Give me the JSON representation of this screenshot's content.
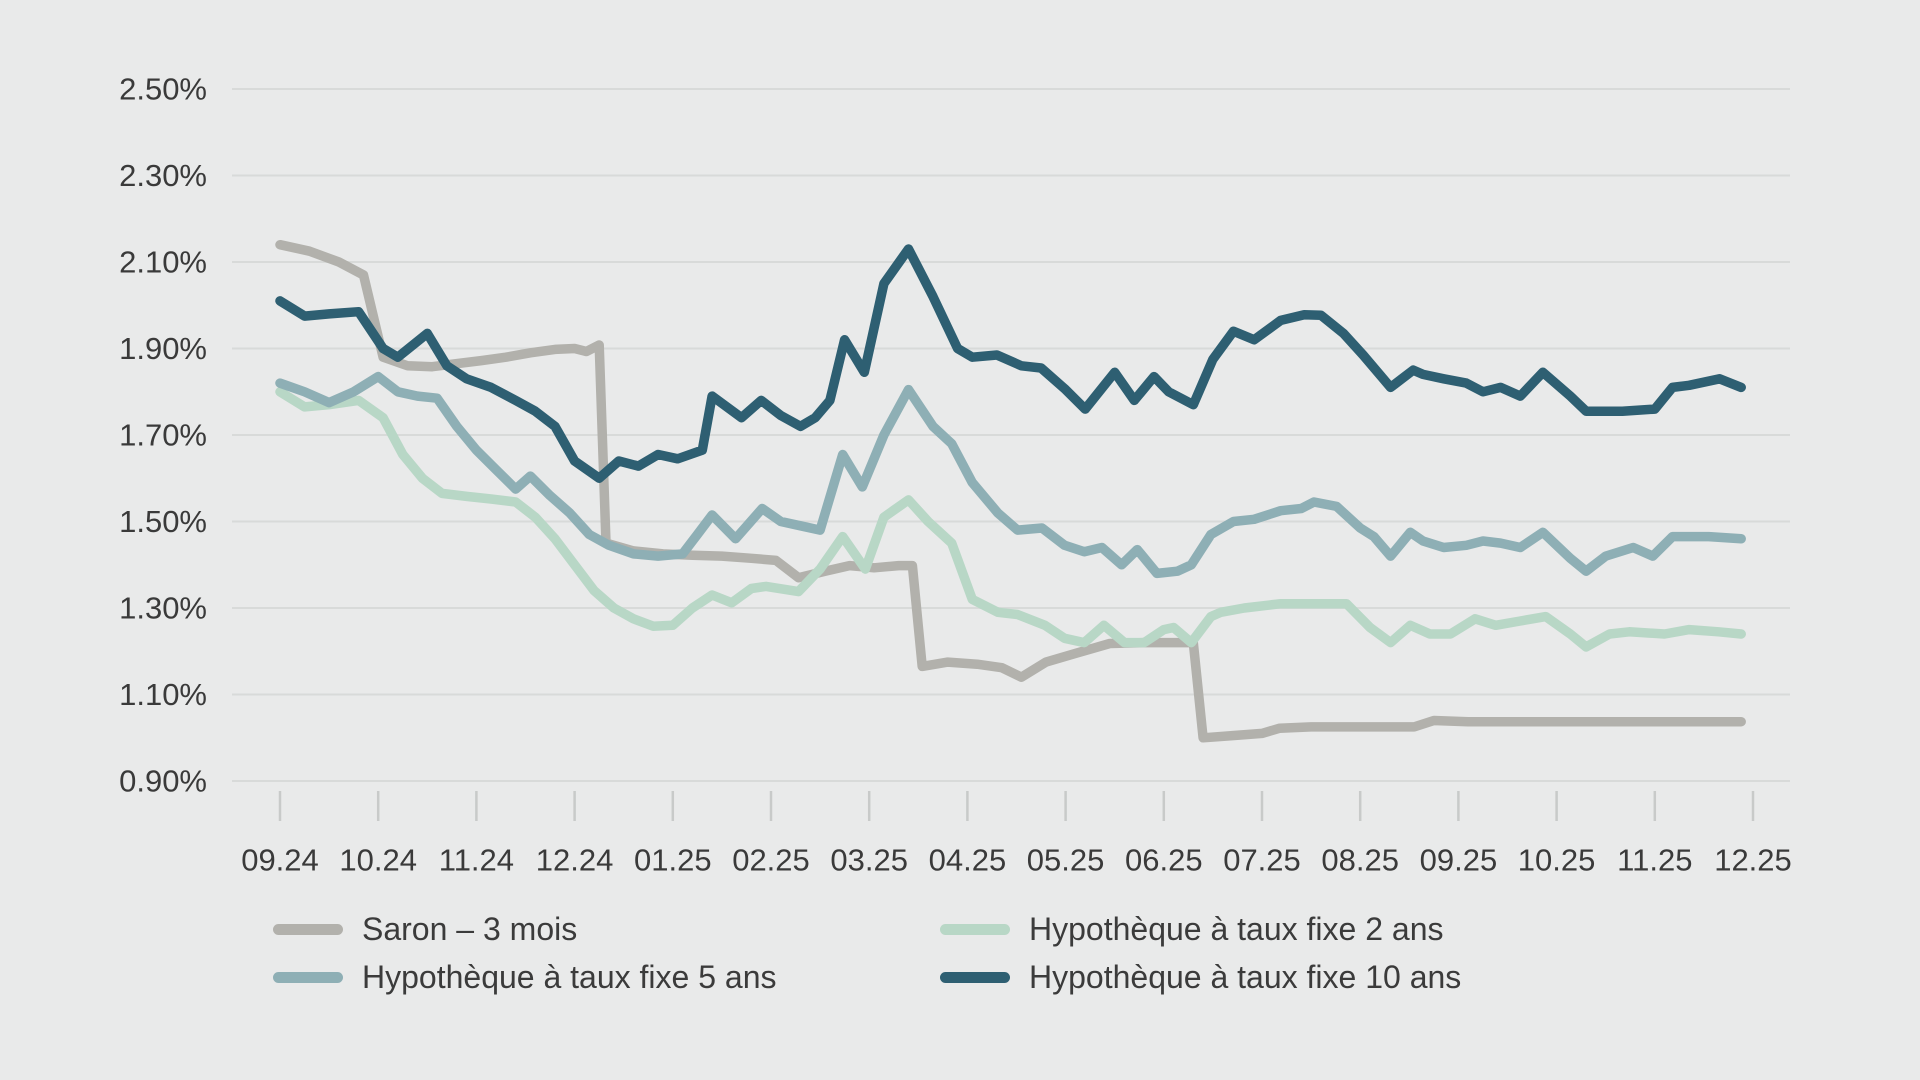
{
  "chart_data": {
    "type": "line",
    "title": "",
    "xlabel": "",
    "ylabel": "",
    "x_unit": "months since 09.2024 (fractional month index, 0 = 09.24 tick)",
    "x_tick_labels": [
      "09.24",
      "10.24",
      "11.24",
      "12.24",
      "01.25",
      "02.25",
      "03.25",
      "04.25",
      "05.25",
      "06.25",
      "07.25",
      "08.25",
      "09.25",
      "10.25",
      "11.25",
      "12.25"
    ],
    "y_axis": {
      "values": [
        2.5,
        2.3,
        2.1,
        1.9,
        1.7,
        1.5,
        1.3,
        1.1,
        0.9
      ],
      "labels": [
        "2.50%",
        "2.30%",
        "2.10%",
        "1.90%",
        "1.70%",
        "1.50%",
        "1.30%",
        "1.10%",
        "0.90%"
      ]
    },
    "ylim": [
      0.9,
      2.5
    ],
    "grid": "horizontal-only",
    "legend_position": "bottom",
    "colors": {
      "background": "#e9eaea",
      "gridline": "#d8dad9",
      "tick": "#c8cac9",
      "text": "#3a3a3a"
    },
    "series": [
      {
        "id": "saron-3-mois",
        "name": "Saron – 3 mois",
        "color": "#b2b1ac",
        "points": [
          [
            0.0,
            2.14
          ],
          [
            0.3,
            2.125
          ],
          [
            0.6,
            2.1
          ],
          [
            0.85,
            2.07
          ],
          [
            1.05,
            1.88
          ],
          [
            1.3,
            1.86
          ],
          [
            1.55,
            1.858
          ],
          [
            1.8,
            1.865
          ],
          [
            2.05,
            1.872
          ],
          [
            2.3,
            1.88
          ],
          [
            2.55,
            1.89
          ],
          [
            2.8,
            1.898
          ],
          [
            3.0,
            1.9
          ],
          [
            3.12,
            1.893
          ],
          [
            3.25,
            1.908
          ],
          [
            3.32,
            1.45
          ],
          [
            3.6,
            1.432
          ],
          [
            3.9,
            1.425
          ],
          [
            4.2,
            1.422
          ],
          [
            4.5,
            1.42
          ],
          [
            4.8,
            1.415
          ],
          [
            5.05,
            1.41
          ],
          [
            5.28,
            1.37
          ],
          [
            5.55,
            1.385
          ],
          [
            5.8,
            1.398
          ],
          [
            6.05,
            1.393
          ],
          [
            6.3,
            1.398
          ],
          [
            6.44,
            1.398
          ],
          [
            6.54,
            1.165
          ],
          [
            6.8,
            1.175
          ],
          [
            7.1,
            1.17
          ],
          [
            7.35,
            1.162
          ],
          [
            7.55,
            1.14
          ],
          [
            7.8,
            1.175
          ],
          [
            8.1,
            1.195
          ],
          [
            8.45,
            1.218
          ],
          [
            8.8,
            1.22
          ],
          [
            9.1,
            1.22
          ],
          [
            9.3,
            1.22
          ],
          [
            9.4,
            1.0
          ],
          [
            9.7,
            1.005
          ],
          [
            10.0,
            1.01
          ],
          [
            10.18,
            1.022
          ],
          [
            10.5,
            1.025
          ],
          [
            11.0,
            1.025
          ],
          [
            11.55,
            1.025
          ],
          [
            11.75,
            1.04
          ],
          [
            12.1,
            1.037
          ],
          [
            12.6,
            1.037
          ],
          [
            13.1,
            1.037
          ],
          [
            13.6,
            1.037
          ],
          [
            14.1,
            1.037
          ],
          [
            14.55,
            1.037
          ],
          [
            14.88,
            1.037
          ]
        ]
      },
      {
        "id": "taux-fixe-2-ans",
        "name": "Hypothèque à taux fixe 2 ans",
        "color": "#b8d7c6",
        "points": [
          [
            0.0,
            1.8
          ],
          [
            0.25,
            1.765
          ],
          [
            0.5,
            1.77
          ],
          [
            0.8,
            1.78
          ],
          [
            1.05,
            1.74
          ],
          [
            1.25,
            1.655
          ],
          [
            1.45,
            1.6
          ],
          [
            1.65,
            1.565
          ],
          [
            1.9,
            1.558
          ],
          [
            2.15,
            1.552
          ],
          [
            2.4,
            1.545
          ],
          [
            2.6,
            1.51
          ],
          [
            2.8,
            1.46
          ],
          [
            3.0,
            1.4
          ],
          [
            3.2,
            1.34
          ],
          [
            3.4,
            1.3
          ],
          [
            3.6,
            1.275
          ],
          [
            3.8,
            1.258
          ],
          [
            4.0,
            1.26
          ],
          [
            4.2,
            1.3
          ],
          [
            4.4,
            1.33
          ],
          [
            4.6,
            1.312
          ],
          [
            4.8,
            1.345
          ],
          [
            4.95,
            1.35
          ],
          [
            5.28,
            1.338
          ],
          [
            5.5,
            1.39
          ],
          [
            5.73,
            1.465
          ],
          [
            5.96,
            1.39
          ],
          [
            6.15,
            1.51
          ],
          [
            6.4,
            1.55
          ],
          [
            6.6,
            1.5
          ],
          [
            6.84,
            1.45
          ],
          [
            7.05,
            1.32
          ],
          [
            7.31,
            1.29
          ],
          [
            7.51,
            1.285
          ],
          [
            7.79,
            1.26
          ],
          [
            7.99,
            1.23
          ],
          [
            8.19,
            1.22
          ],
          [
            8.39,
            1.26
          ],
          [
            8.6,
            1.22
          ],
          [
            8.8,
            1.22
          ],
          [
            9.0,
            1.25
          ],
          [
            9.1,
            1.255
          ],
          [
            9.28,
            1.22
          ],
          [
            9.48,
            1.28
          ],
          [
            9.58,
            1.29
          ],
          [
            9.82,
            1.3
          ],
          [
            10.19,
            1.31
          ],
          [
            10.86,
            1.31
          ],
          [
            11.1,
            1.255
          ],
          [
            11.31,
            1.22
          ],
          [
            11.51,
            1.26
          ],
          [
            11.71,
            1.24
          ],
          [
            11.92,
            1.24
          ],
          [
            12.17,
            1.275
          ],
          [
            12.38,
            1.26
          ],
          [
            12.63,
            1.27
          ],
          [
            12.89,
            1.28
          ],
          [
            13.14,
            1.24
          ],
          [
            13.3,
            1.21
          ],
          [
            13.54,
            1.24
          ],
          [
            13.74,
            1.245
          ],
          [
            14.1,
            1.24
          ],
          [
            14.35,
            1.25
          ],
          [
            14.65,
            1.245
          ],
          [
            14.88,
            1.24
          ]
        ]
      },
      {
        "id": "taux-fixe-5-ans",
        "name": "Hypothèque à taux fixe 5 ans",
        "color": "#8eafb5",
        "points": [
          [
            0.0,
            1.82
          ],
          [
            0.25,
            1.8
          ],
          [
            0.5,
            1.775
          ],
          [
            0.75,
            1.8
          ],
          [
            1.0,
            1.835
          ],
          [
            1.2,
            1.8
          ],
          [
            1.4,
            1.79
          ],
          [
            1.6,
            1.785
          ],
          [
            1.8,
            1.72
          ],
          [
            2.0,
            1.665
          ],
          [
            2.2,
            1.62
          ],
          [
            2.4,
            1.575
          ],
          [
            2.55,
            1.605
          ],
          [
            2.75,
            1.56
          ],
          [
            2.95,
            1.52
          ],
          [
            3.15,
            1.47
          ],
          [
            3.35,
            1.445
          ],
          [
            3.6,
            1.425
          ],
          [
            3.85,
            1.42
          ],
          [
            4.1,
            1.425
          ],
          [
            4.25,
            1.47
          ],
          [
            4.4,
            1.515
          ],
          [
            4.64,
            1.46
          ],
          [
            4.91,
            1.53
          ],
          [
            5.1,
            1.5
          ],
          [
            5.3,
            1.49
          ],
          [
            5.5,
            1.48
          ],
          [
            5.73,
            1.655
          ],
          [
            5.93,
            1.58
          ],
          [
            6.15,
            1.7
          ],
          [
            6.4,
            1.805
          ],
          [
            6.65,
            1.72
          ],
          [
            6.84,
            1.68
          ],
          [
            7.05,
            1.59
          ],
          [
            7.31,
            1.52
          ],
          [
            7.51,
            1.48
          ],
          [
            7.76,
            1.485
          ],
          [
            7.99,
            1.445
          ],
          [
            8.19,
            1.43
          ],
          [
            8.37,
            1.44
          ],
          [
            8.57,
            1.4
          ],
          [
            8.73,
            1.435
          ],
          [
            8.93,
            1.38
          ],
          [
            9.14,
            1.385
          ],
          [
            9.28,
            1.4
          ],
          [
            9.48,
            1.47
          ],
          [
            9.71,
            1.5
          ],
          [
            9.92,
            1.505
          ],
          [
            10.19,
            1.525
          ],
          [
            10.4,
            1.53
          ],
          [
            10.53,
            1.545
          ],
          [
            10.76,
            1.535
          ],
          [
            11.0,
            1.485
          ],
          [
            11.14,
            1.465
          ],
          [
            11.31,
            1.42
          ],
          [
            11.51,
            1.475
          ],
          [
            11.64,
            1.455
          ],
          [
            11.85,
            1.44
          ],
          [
            12.08,
            1.445
          ],
          [
            12.25,
            1.455
          ],
          [
            12.43,
            1.45
          ],
          [
            12.63,
            1.44
          ],
          [
            12.86,
            1.475
          ],
          [
            13.14,
            1.415
          ],
          [
            13.3,
            1.385
          ],
          [
            13.5,
            1.42
          ],
          [
            13.78,
            1.44
          ],
          [
            13.98,
            1.42
          ],
          [
            14.18,
            1.465
          ],
          [
            14.55,
            1.465
          ],
          [
            14.88,
            1.46
          ]
        ]
      },
      {
        "id": "taux-fixe-10-ans",
        "name": "Hypothèque à taux fixe 10 ans",
        "color": "#2e5f72",
        "points": [
          [
            0.0,
            2.01
          ],
          [
            0.25,
            1.975
          ],
          [
            0.5,
            1.98
          ],
          [
            0.8,
            1.985
          ],
          [
            1.05,
            1.9
          ],
          [
            1.2,
            1.88
          ],
          [
            1.5,
            1.935
          ],
          [
            1.7,
            1.86
          ],
          [
            1.9,
            1.83
          ],
          [
            2.15,
            1.81
          ],
          [
            2.4,
            1.78
          ],
          [
            2.6,
            1.755
          ],
          [
            2.8,
            1.72
          ],
          [
            3.0,
            1.64
          ],
          [
            3.25,
            1.6
          ],
          [
            3.45,
            1.64
          ],
          [
            3.65,
            1.628
          ],
          [
            3.85,
            1.655
          ],
          [
            4.05,
            1.645
          ],
          [
            4.3,
            1.665
          ],
          [
            4.4,
            1.79
          ],
          [
            4.7,
            1.74
          ],
          [
            4.9,
            1.78
          ],
          [
            5.1,
            1.745
          ],
          [
            5.3,
            1.72
          ],
          [
            5.45,
            1.74
          ],
          [
            5.6,
            1.78
          ],
          [
            5.75,
            1.92
          ],
          [
            5.95,
            1.845
          ],
          [
            6.15,
            2.05
          ],
          [
            6.4,
            2.13
          ],
          [
            6.65,
            2.02
          ],
          [
            6.9,
            1.9
          ],
          [
            7.05,
            1.88
          ],
          [
            7.3,
            1.885
          ],
          [
            7.55,
            1.86
          ],
          [
            7.75,
            1.855
          ],
          [
            8.0,
            1.805
          ],
          [
            8.2,
            1.76
          ],
          [
            8.5,
            1.845
          ],
          [
            8.7,
            1.78
          ],
          [
            8.9,
            1.835
          ],
          [
            9.05,
            1.8
          ],
          [
            9.3,
            1.77
          ],
          [
            9.5,
            1.875
          ],
          [
            9.71,
            1.94
          ],
          [
            9.92,
            1.92
          ],
          [
            10.19,
            1.965
          ],
          [
            10.43,
            1.978
          ],
          [
            10.6,
            1.977
          ],
          [
            10.83,
            1.935
          ],
          [
            11.03,
            1.885
          ],
          [
            11.31,
            1.81
          ],
          [
            11.54,
            1.85
          ],
          [
            11.64,
            1.84
          ],
          [
            11.85,
            1.83
          ],
          [
            12.08,
            1.82
          ],
          [
            12.25,
            1.8
          ],
          [
            12.43,
            1.81
          ],
          [
            12.63,
            1.79
          ],
          [
            12.86,
            1.845
          ],
          [
            13.14,
            1.79
          ],
          [
            13.3,
            1.755
          ],
          [
            13.67,
            1.755
          ],
          [
            14.0,
            1.76
          ],
          [
            14.18,
            1.81
          ],
          [
            14.35,
            1.815
          ],
          [
            14.66,
            1.83
          ],
          [
            14.88,
            1.81
          ]
        ]
      }
    ]
  }
}
